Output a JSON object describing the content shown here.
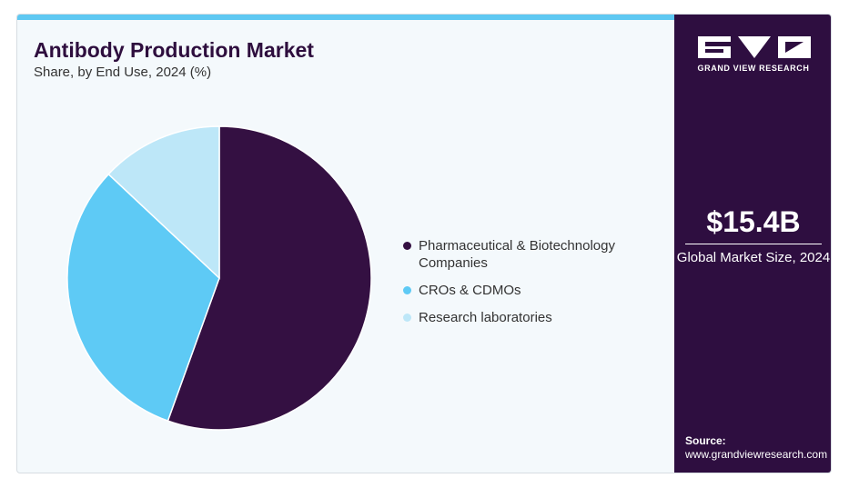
{
  "header": {
    "title": "Antibody Production Market",
    "subtitle": "Share, by End Use, 2024 (%)"
  },
  "sidebar": {
    "brand": "GRAND VIEW RESEARCH",
    "market_size": "$15.4B",
    "market_label": "Global Market Size, 2024",
    "source_label": "Source:",
    "source_url": "www.grandviewresearch.com"
  },
  "colors": {
    "accent_bar": "#5ec8f2",
    "sidebar_bg": "#2e0e40"
  },
  "chart_data": {
    "type": "pie",
    "title": "Antibody Production Market",
    "subtitle": "Share, by End Use, 2024 (%)",
    "legend_position": "right",
    "slices": [
      {
        "label": "Pharmaceutical & Biotechnology Companies",
        "value": 55.5,
        "color": "#341042"
      },
      {
        "label": "CROs & CDMOs",
        "value": 31.5,
        "color": "#5ecaf5"
      },
      {
        "label": "Research laboratories",
        "value": 13.0,
        "color": "#bde7f8"
      }
    ]
  }
}
